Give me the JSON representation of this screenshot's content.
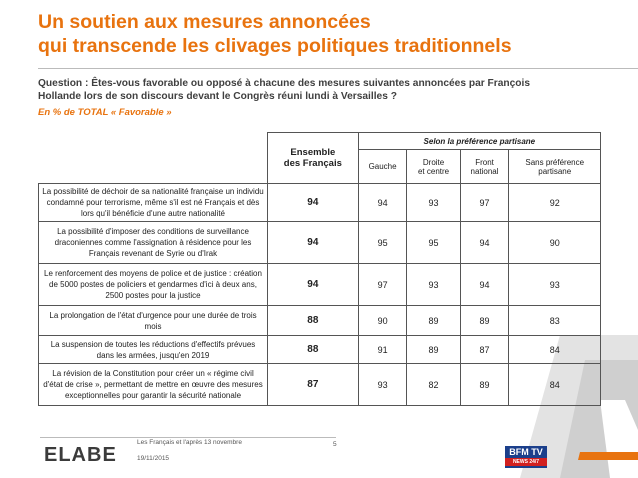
{
  "header": {
    "title": [
      "Un soutien aux mesures annoncées",
      "qui transcende les clivages politiques traditionnels"
    ],
    "question": [
      "Question : Êtes-vous favorable ou opposé à chacune des mesures suivantes annoncées par François",
      "Hollande lors de son discours devant le Congrès réuni lundi à Versailles ?"
    ],
    "subtitle": "En % de TOTAL « Favorable »"
  },
  "table": {
    "group_header": "Selon la préférence partisane",
    "columns": [
      [
        "Ensemble",
        "des Français"
      ],
      [
        "Gauche"
      ],
      [
        "Droite",
        "et centre"
      ],
      [
        "Front",
        "national"
      ],
      [
        "Sans préférence",
        "partisane"
      ]
    ],
    "rows": [
      {
        "label": "La possibilité de déchoir de sa nationalité française un individu condamné pour terrorisme, même s'il est né Français et dès lors qu'il bénéficie d'une autre nationalité",
        "values": [
          94,
          94,
          93,
          97,
          92
        ]
      },
      {
        "label": "La possibilité d'imposer des conditions de surveillance draconiennes comme l'assignation à résidence pour les Français revenant de Syrie ou d'Irak",
        "values": [
          94,
          95,
          95,
          94,
          90
        ]
      },
      {
        "label": "Le renforcement des moyens de police et de justice : création de 5000 postes de policiers et gendarmes d'ici à deux ans, 2500 postes pour la justice",
        "values": [
          94,
          97,
          93,
          94,
          93
        ]
      },
      {
        "label": "La prolongation de l'état d'urgence pour une durée de trois mois",
        "values": [
          88,
          90,
          89,
          89,
          83
        ]
      },
      {
        "label": "La suspension de toutes les réductions d'effectifs prévues dans les armées, jusqu'en 2019",
        "values": [
          88,
          91,
          89,
          87,
          84
        ]
      },
      {
        "label": "La révision de la Constitution pour créer un « régime civil d'état de crise », permettant de mettre en œuvre des mesures exceptionnelles pour garantir la sécurité nationale",
        "values": [
          87,
          93,
          82,
          89,
          84
        ]
      }
    ]
  },
  "footer": {
    "logo": "ELABE",
    "study": "Les Français et l'après 13 novembre",
    "date": "19/11/2015",
    "page": "5",
    "partner": "BFM TV",
    "partner_tagline": "NEWS 24/7"
  }
}
